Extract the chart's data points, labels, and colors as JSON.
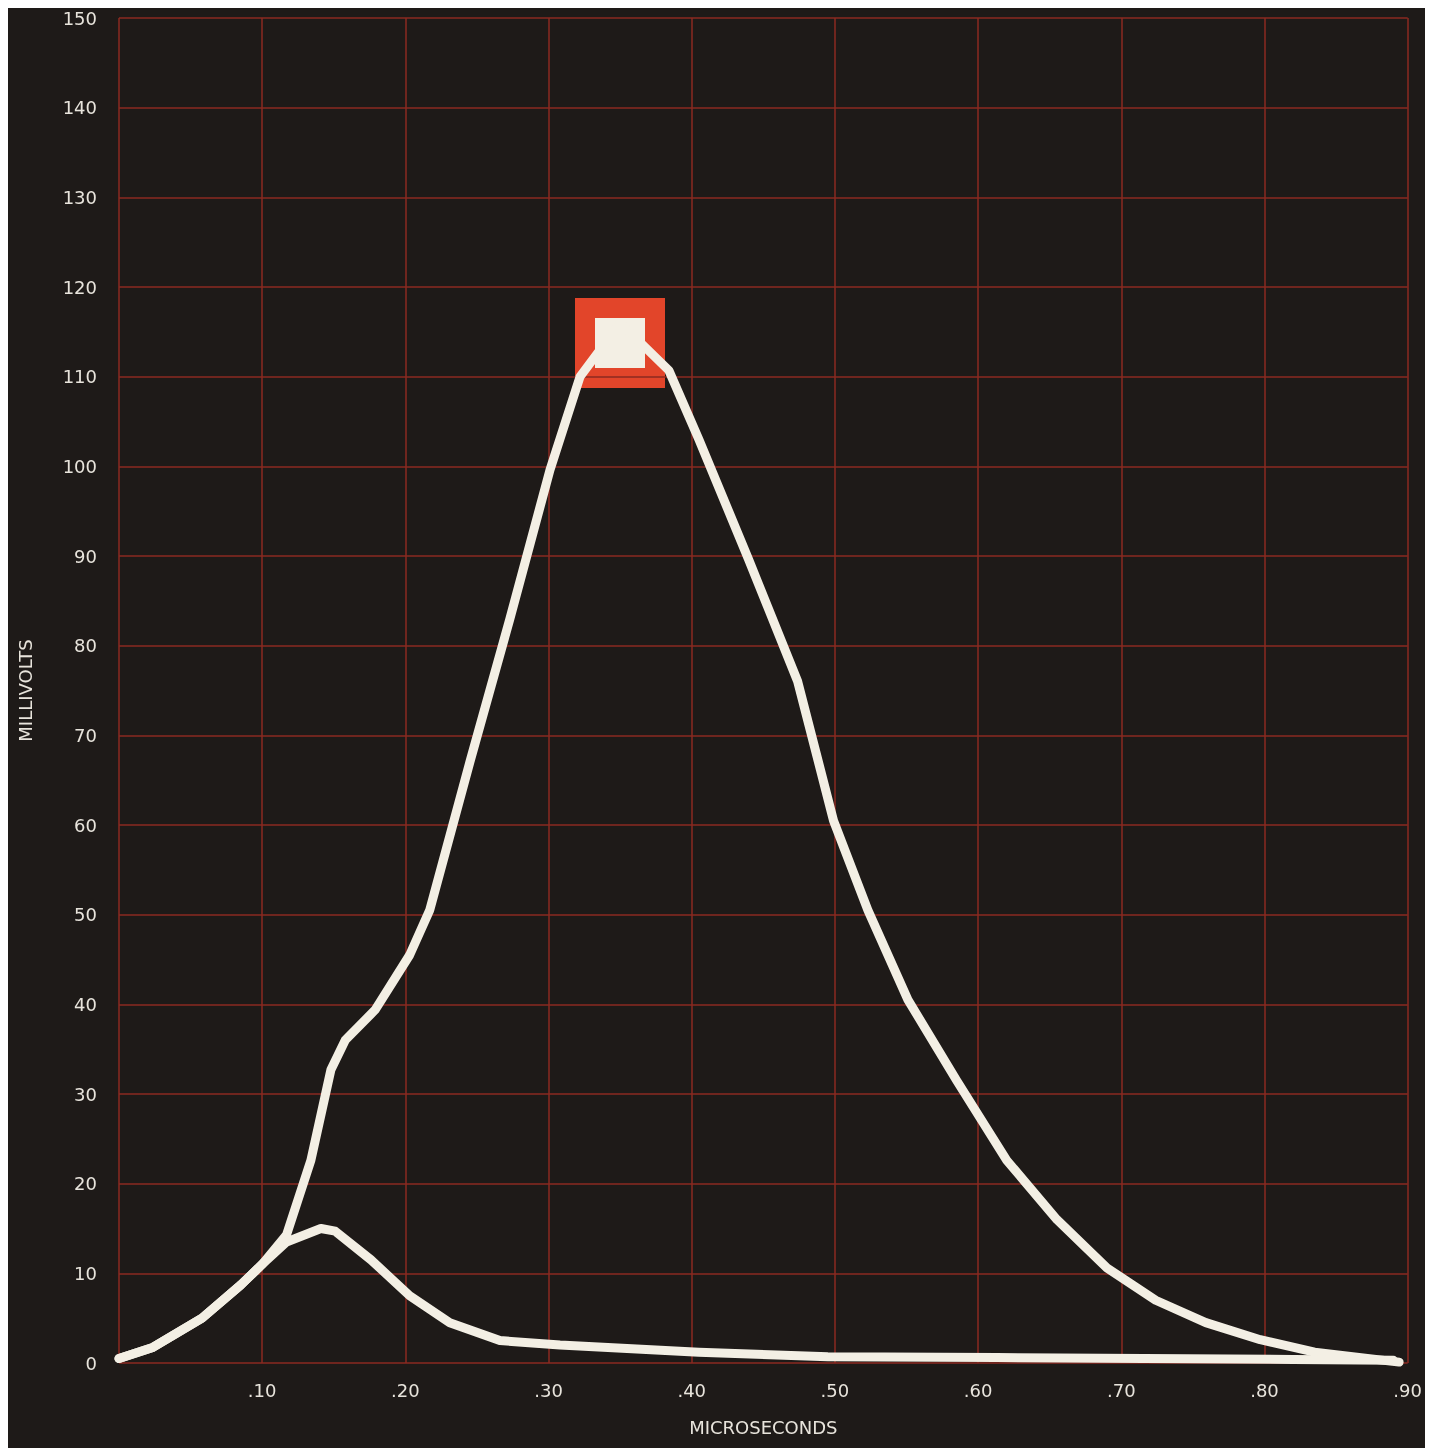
{
  "chart_data": {
    "type": "line",
    "xlabel": "MICROSECONDS",
    "ylabel": "MILLIVOLTS",
    "xlim": [
      0,
      0.9
    ],
    "ylim": [
      0,
      150
    ],
    "xticks": [
      {
        "value": 0,
        "label": null
      },
      {
        "value": 0.1,
        "label": ".10"
      },
      {
        "value": 0.2,
        "label": ".20"
      },
      {
        "value": 0.3,
        "label": ".30"
      },
      {
        "value": 0.4,
        "label": ".40"
      },
      {
        "value": 0.5,
        "label": ".50"
      },
      {
        "value": 0.6,
        "label": ".60"
      },
      {
        "value": 0.7,
        "label": ".70"
      },
      {
        "value": 0.8,
        "label": ".80"
      },
      {
        "value": 0.9,
        "label": ".90"
      }
    ],
    "yticks": [
      0,
      10,
      20,
      30,
      40,
      50,
      60,
      70,
      80,
      90,
      100,
      110,
      120,
      130,
      140,
      150
    ],
    "grid": true,
    "line_style": "solid",
    "series": [
      {
        "color": "#f3efe4",
        "x": [
          0,
          0.023,
          0.058,
          0.085,
          0.1,
          0.117,
          0.134,
          0.148,
          0.158,
          0.179,
          0.203,
          0.217,
          0.245,
          0.273,
          0.301,
          0.322,
          0.35,
          0.384,
          0.405,
          0.44,
          0.474,
          0.499,
          0.523,
          0.551,
          0.585,
          0.62,
          0.655,
          0.69,
          0.724,
          0.759,
          0.797,
          0.835,
          0.894
        ],
        "values": [
          0.5,
          1.7,
          5,
          8.7,
          11,
          14.3,
          22.6,
          32.7,
          36,
          39.4,
          45.5,
          50.5,
          67,
          83,
          99.6,
          110,
          116,
          110.7,
          103,
          89.5,
          76,
          60.5,
          50.5,
          40.5,
          31.5,
          22.6,
          16,
          10.6,
          7,
          4.5,
          2.6,
          1.2,
          0.1
        ]
      },
      {
        "color": "#f3efe4",
        "x": [
          0,
          0.023,
          0.058,
          0.085,
          0.1,
          0.117,
          0.141,
          0.151,
          0.176,
          0.203,
          0.231,
          0.266,
          0.308,
          0.405,
          0.495,
          0.613,
          0.82,
          0.89
        ],
        "values": [
          0.5,
          1.7,
          5,
          8.7,
          11,
          13.5,
          15,
          14.7,
          11.5,
          7.5,
          4.5,
          2.5,
          2,
          1.2,
          0.7,
          0.6,
          0.4,
          0.3
        ]
      }
    ]
  }
}
